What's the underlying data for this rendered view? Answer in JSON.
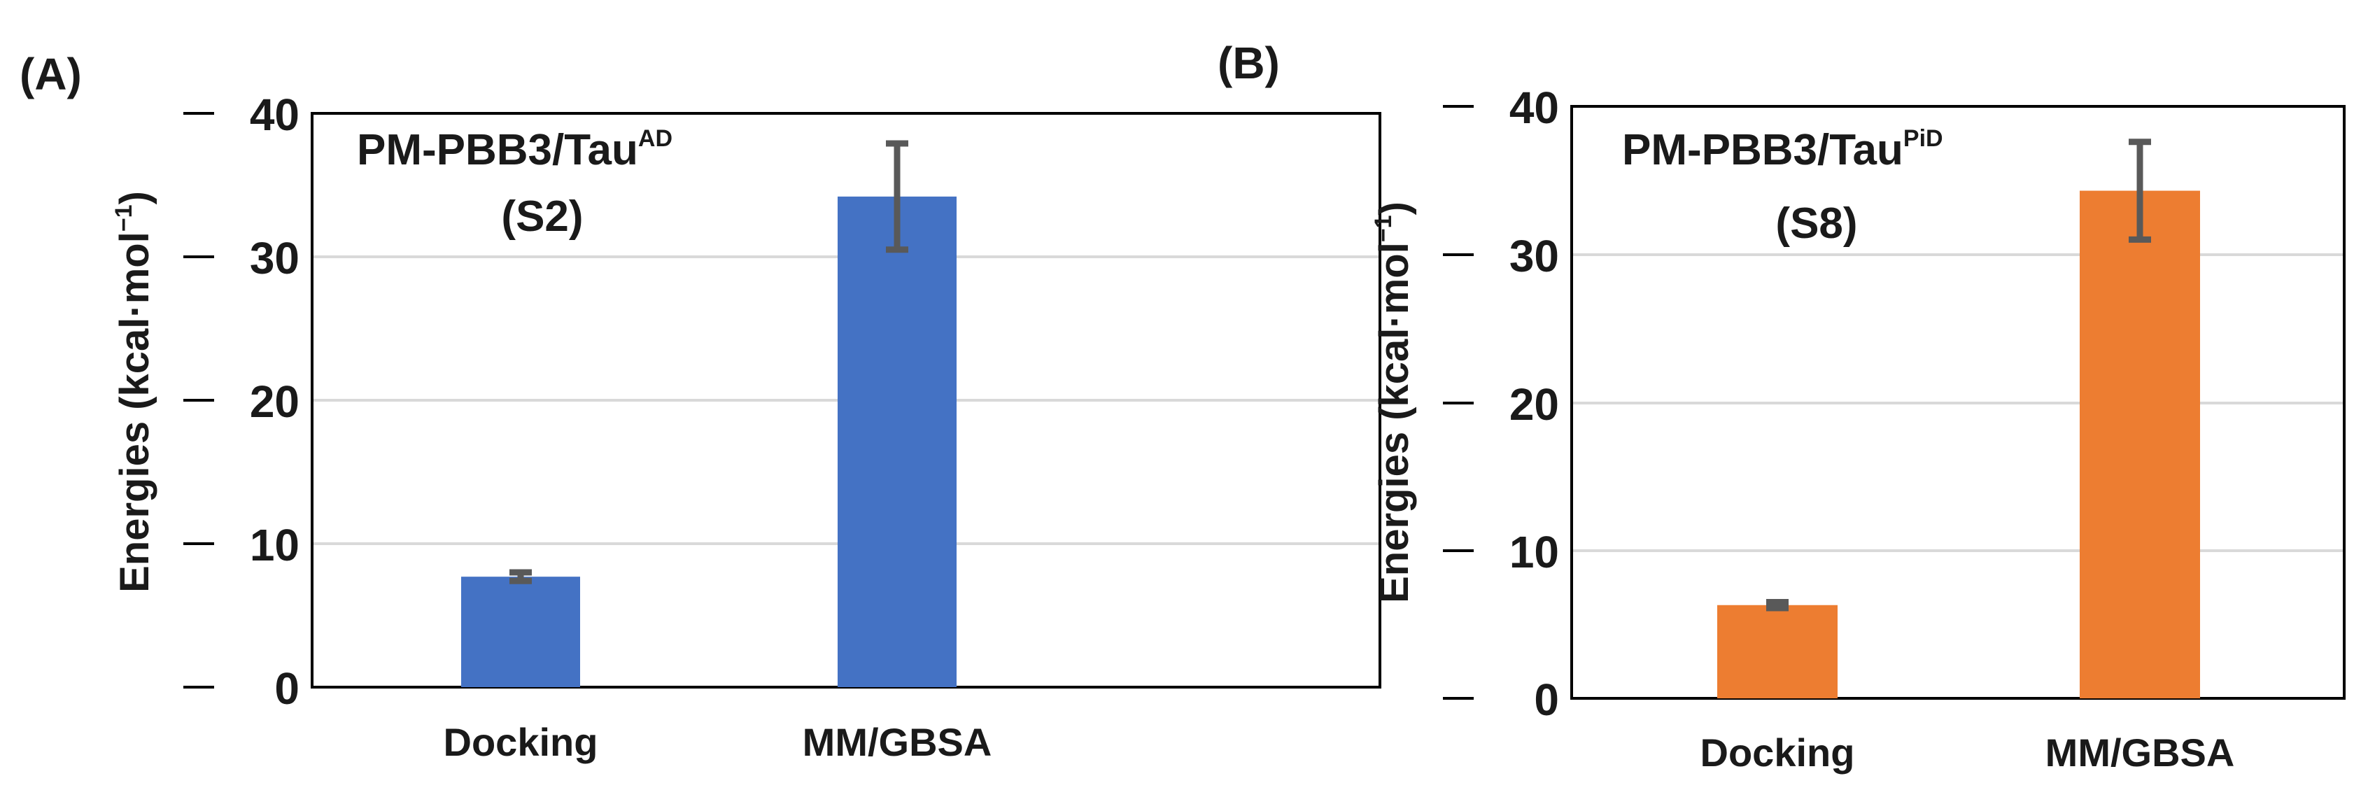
{
  "chart_data": [
    {
      "type": "bar",
      "panel_label": "(A)",
      "title": {
        "line1_main": "PM-PBB3/Tau",
        "line1_sup": "AD",
        "line2": "(S2)"
      },
      "ylabel": {
        "main": "Energies (kcal·mol",
        "sup": "−1",
        "close": ")"
      },
      "xlabel": "",
      "categories": [
        "Docking",
        "MM/GBSA"
      ],
      "values": [
        7.7,
        34.2
      ],
      "errors": [
        0.3,
        3.7
      ],
      "ylim": [
        0,
        40
      ],
      "yticks": [
        "0",
        "10",
        "20",
        "30",
        "40"
      ],
      "grid": true,
      "bar_color": "#4472C4",
      "error_color": "#595959"
    },
    {
      "type": "bar",
      "panel_label": "(B)",
      "title": {
        "line1_main": "PM-PBB3/Tau",
        "line1_sup": "PiD",
        "line2": "(S8)"
      },
      "ylabel": {
        "main": "Energies (kcal·mol",
        "sup": "−1",
        "close": ")"
      },
      "xlabel": "",
      "categories": [
        "Docking",
        "MM/GBSA"
      ],
      "values": [
        6.3,
        34.3
      ],
      "errors": [
        0.2,
        3.3
      ],
      "ylim": [
        0,
        40
      ],
      "yticks": [
        "0",
        "10",
        "20",
        "30",
        "40"
      ],
      "grid": true,
      "bar_color": "#ED7D31",
      "error_color": "#595959"
    }
  ]
}
